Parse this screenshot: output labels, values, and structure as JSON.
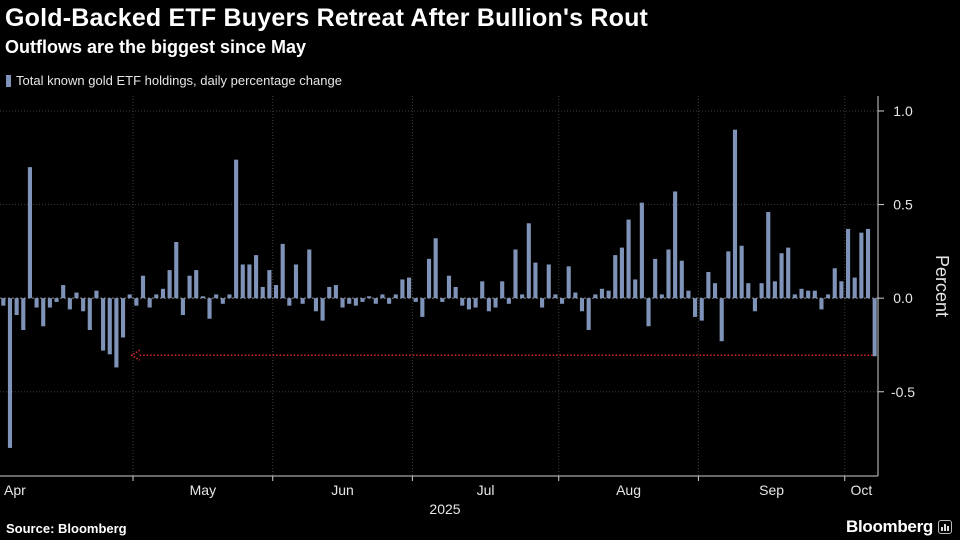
{
  "header": {
    "title": "Gold-Backed ETF Buyers Retreat After Bullion's Rout",
    "subtitle": "Outflows are the biggest since May"
  },
  "footer": {
    "source": "Source: Bloomberg",
    "brand": "Bloomberg"
  },
  "colors": {
    "background": "#000000",
    "bar": "#7f93b8",
    "arrow": "#d9262b",
    "grid": "#3a3a3a",
    "text": "#ffffff"
  },
  "chart_data": {
    "type": "bar",
    "title": "Gold-Backed ETF Buyers Retreat After Bullion's Rout",
    "subtitle": "Outflows are the biggest since May",
    "legend": [
      "Total known gold ETF holdings, daily percentage change"
    ],
    "legend_position": "top-left",
    "xlabel": "2025",
    "ylabel": "Percent",
    "ylim": [
      -0.95,
      1.08
    ],
    "yticks": [
      1.0,
      0.5,
      0.0,
      -0.5
    ],
    "ytick_labels": [
      "1.0",
      "0.5",
      "0.0",
      "-0.5"
    ],
    "x_month_labels": [
      "Apr",
      "May",
      "Jun",
      "Jul",
      "Aug",
      "Sep",
      "Oct"
    ],
    "x_month_start_index": [
      0,
      20,
      41,
      62,
      84,
      105,
      127
    ],
    "x_year_label": "2025",
    "grid": true,
    "annotation": "dotted arrow marking the latest outflow level, pointing back to May",
    "series": [
      {
        "name": "Total known gold ETF holdings, daily percentage change",
        "values": [
          -0.04,
          -0.8,
          -0.09,
          -0.17,
          0.7,
          -0.05,
          -0.15,
          -0.05,
          -0.02,
          0.07,
          -0.06,
          0.03,
          -0.07,
          -0.17,
          0.04,
          -0.28,
          -0.3,
          -0.37,
          -0.21,
          0.02,
          -0.04,
          0.12,
          -0.05,
          0.02,
          0.05,
          0.15,
          0.3,
          -0.09,
          0.12,
          0.15,
          0.01,
          -0.11,
          0.02,
          -0.03,
          0.02,
          0.74,
          0.18,
          0.18,
          0.23,
          0.06,
          0.15,
          0.07,
          0.29,
          -0.04,
          0.18,
          -0.03,
          0.26,
          -0.07,
          -0.12,
          0.06,
          0.07,
          -0.05,
          -0.03,
          -0.04,
          -0.02,
          0.01,
          -0.03,
          0.02,
          -0.03,
          0.02,
          0.1,
          0.11,
          -0.02,
          -0.1,
          0.21,
          0.32,
          -0.02,
          0.12,
          0.06,
          -0.04,
          -0.06,
          -0.05,
          0.09,
          -0.07,
          -0.05,
          0.09,
          -0.03,
          0.26,
          0.02,
          0.4,
          0.19,
          -0.05,
          0.18,
          0.02,
          -0.03,
          0.17,
          0.03,
          -0.07,
          -0.17,
          0.02,
          0.05,
          0.04,
          0.23,
          0.27,
          0.42,
          0.1,
          0.51,
          -0.15,
          0.21,
          0.02,
          0.26,
          0.57,
          0.2,
          0.04,
          -0.1,
          -0.12,
          0.14,
          0.08,
          -0.23,
          0.25,
          0.9,
          0.28,
          0.08,
          -0.07,
          0.08,
          0.46,
          0.09,
          0.24,
          0.27,
          0.02,
          0.05,
          0.04,
          0.04,
          -0.06,
          0.02,
          0.16,
          0.09,
          0.37,
          0.11,
          0.35,
          0.37,
          -0.31
        ]
      }
    ]
  }
}
